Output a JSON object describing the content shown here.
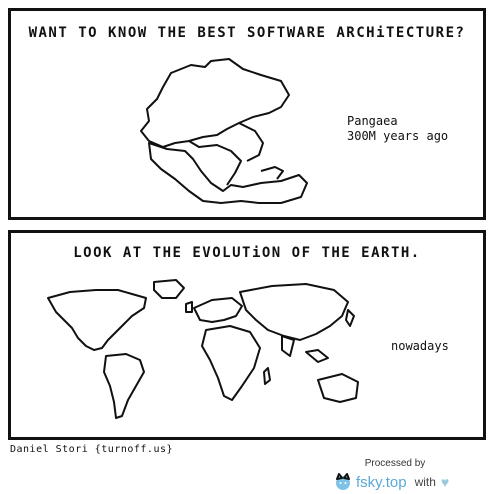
{
  "panel1": {
    "caption": "WANT TO KNOW THE BEST SOFTWARE ARCHiTECTURE?",
    "label_line1": "Pangaea",
    "label_line2": "300M years ago"
  },
  "panel2": {
    "caption": "LOOK AT THE EVOLUTiON OF THE EARTH.",
    "label": "nowadays"
  },
  "credit": "Daniel Stori {turnoff.us}",
  "footer": {
    "processed_by": "Processed by",
    "brand": "fsky.top",
    "with": "with",
    "heart": "♥",
    "logo_icon": "cat-face-icon",
    "colors": {
      "brand": "#5aa9d6",
      "heart": "#9bc9de"
    }
  }
}
